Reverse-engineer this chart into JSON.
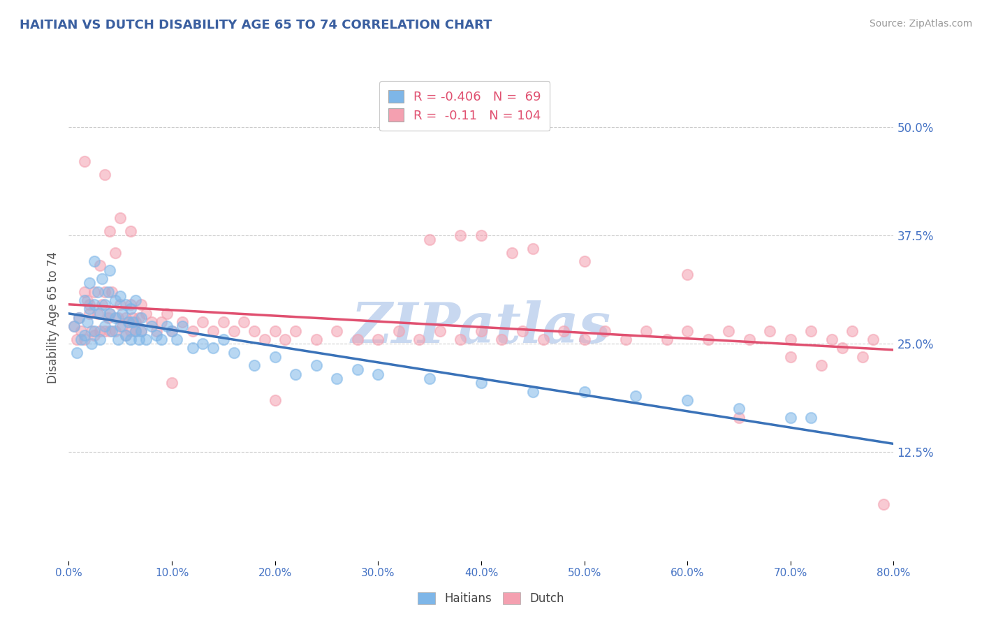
{
  "title": "HAITIAN VS DUTCH DISABILITY AGE 65 TO 74 CORRELATION CHART",
  "ylabel": "Disability Age 65 to 74",
  "source_text": "Source: ZipAtlas.com",
  "xmin": 0.0,
  "xmax": 0.8,
  "ymin": 0.0,
  "ymax": 0.56,
  "yticks": [
    0.125,
    0.25,
    0.375,
    0.5
  ],
  "ytick_labels": [
    "12.5%",
    "25.0%",
    "37.5%",
    "50.0%"
  ],
  "xticks": [
    0.0,
    0.1,
    0.2,
    0.3,
    0.4,
    0.5,
    0.6,
    0.7,
    0.8
  ],
  "xtick_labels": [
    "0.0%",
    "10.0%",
    "20.0%",
    "30.0%",
    "40.0%",
    "50.0%",
    "60.0%",
    "70.0%",
    "80.0%"
  ],
  "haitian_color": "#7EB6E8",
  "dutch_color": "#F4A0B0",
  "haitian_line_color": "#3A72B8",
  "dutch_line_color": "#E05070",
  "haitian_R": -0.406,
  "haitian_N": 69,
  "dutch_R": -0.11,
  "dutch_N": 104,
  "legend_R_color": "#E05070",
  "title_color": "#3A5FA0",
  "axis_label_color": "#555555",
  "tick_color": "#4472C4",
  "watermark_text": "ZIPatlas",
  "watermark_color": "#C8D8F0",
  "background_color": "#FFFFFF",
  "grid_color": "#CCCCCC",
  "haitian_scatter": {
    "x": [
      0.005,
      0.008,
      0.01,
      0.012,
      0.015,
      0.015,
      0.018,
      0.02,
      0.02,
      0.022,
      0.025,
      0.025,
      0.025,
      0.028,
      0.03,
      0.03,
      0.032,
      0.035,
      0.035,
      0.038,
      0.04,
      0.04,
      0.042,
      0.045,
      0.045,
      0.048,
      0.05,
      0.05,
      0.052,
      0.055,
      0.055,
      0.058,
      0.06,
      0.06,
      0.062,
      0.065,
      0.065,
      0.068,
      0.07,
      0.07,
      0.075,
      0.08,
      0.085,
      0.09,
      0.095,
      0.1,
      0.105,
      0.11,
      0.12,
      0.13,
      0.14,
      0.15,
      0.16,
      0.18,
      0.2,
      0.22,
      0.24,
      0.26,
      0.28,
      0.3,
      0.35,
      0.4,
      0.45,
      0.5,
      0.55,
      0.6,
      0.65,
      0.7,
      0.72
    ],
    "y": [
      0.27,
      0.24,
      0.28,
      0.255,
      0.3,
      0.26,
      0.275,
      0.29,
      0.32,
      0.25,
      0.345,
      0.265,
      0.295,
      0.31,
      0.285,
      0.255,
      0.325,
      0.27,
      0.295,
      0.31,
      0.285,
      0.335,
      0.265,
      0.3,
      0.28,
      0.255,
      0.27,
      0.305,
      0.285,
      0.26,
      0.295,
      0.275,
      0.255,
      0.29,
      0.275,
      0.265,
      0.3,
      0.255,
      0.28,
      0.265,
      0.255,
      0.27,
      0.26,
      0.255,
      0.27,
      0.265,
      0.255,
      0.27,
      0.245,
      0.25,
      0.245,
      0.255,
      0.24,
      0.225,
      0.235,
      0.215,
      0.225,
      0.21,
      0.22,
      0.215,
      0.21,
      0.205,
      0.195,
      0.195,
      0.19,
      0.185,
      0.175,
      0.165,
      0.165
    ]
  },
  "dutch_scatter": {
    "x": [
      0.005,
      0.008,
      0.01,
      0.012,
      0.015,
      0.015,
      0.018,
      0.02,
      0.02,
      0.022,
      0.025,
      0.025,
      0.028,
      0.03,
      0.03,
      0.032,
      0.035,
      0.035,
      0.038,
      0.04,
      0.04,
      0.04,
      0.042,
      0.045,
      0.045,
      0.048,
      0.05,
      0.05,
      0.052,
      0.055,
      0.055,
      0.058,
      0.06,
      0.06,
      0.062,
      0.065,
      0.065,
      0.068,
      0.07,
      0.07,
      0.075,
      0.08,
      0.085,
      0.09,
      0.095,
      0.1,
      0.11,
      0.12,
      0.13,
      0.14,
      0.15,
      0.16,
      0.17,
      0.18,
      0.19,
      0.2,
      0.21,
      0.22,
      0.24,
      0.26,
      0.28,
      0.3,
      0.32,
      0.34,
      0.36,
      0.38,
      0.4,
      0.42,
      0.44,
      0.46,
      0.48,
      0.5,
      0.52,
      0.54,
      0.56,
      0.58,
      0.6,
      0.62,
      0.64,
      0.66,
      0.68,
      0.7,
      0.72,
      0.74,
      0.76,
      0.78,
      0.015,
      0.035,
      0.06,
      0.1,
      0.2,
      0.35,
      0.38,
      0.43,
      0.5,
      0.6,
      0.65,
      0.7,
      0.73,
      0.75,
      0.77,
      0.79,
      0.4,
      0.45
    ],
    "y": [
      0.27,
      0.255,
      0.28,
      0.265,
      0.31,
      0.255,
      0.3,
      0.285,
      0.295,
      0.265,
      0.31,
      0.26,
      0.285,
      0.34,
      0.265,
      0.295,
      0.31,
      0.265,
      0.28,
      0.38,
      0.285,
      0.265,
      0.31,
      0.355,
      0.265,
      0.28,
      0.395,
      0.295,
      0.27,
      0.28,
      0.26,
      0.275,
      0.295,
      0.265,
      0.28,
      0.275,
      0.265,
      0.28,
      0.295,
      0.265,
      0.285,
      0.275,
      0.265,
      0.275,
      0.285,
      0.265,
      0.275,
      0.265,
      0.275,
      0.265,
      0.275,
      0.265,
      0.275,
      0.265,
      0.255,
      0.265,
      0.255,
      0.265,
      0.255,
      0.265,
      0.255,
      0.255,
      0.265,
      0.255,
      0.265,
      0.255,
      0.265,
      0.255,
      0.265,
      0.255,
      0.265,
      0.255,
      0.265,
      0.255,
      0.265,
      0.255,
      0.265,
      0.255,
      0.265,
      0.255,
      0.265,
      0.255,
      0.265,
      0.255,
      0.265,
      0.255,
      0.46,
      0.445,
      0.38,
      0.205,
      0.185,
      0.37,
      0.375,
      0.355,
      0.345,
      0.33,
      0.165,
      0.235,
      0.225,
      0.245,
      0.235,
      0.065,
      0.375,
      0.36
    ]
  }
}
